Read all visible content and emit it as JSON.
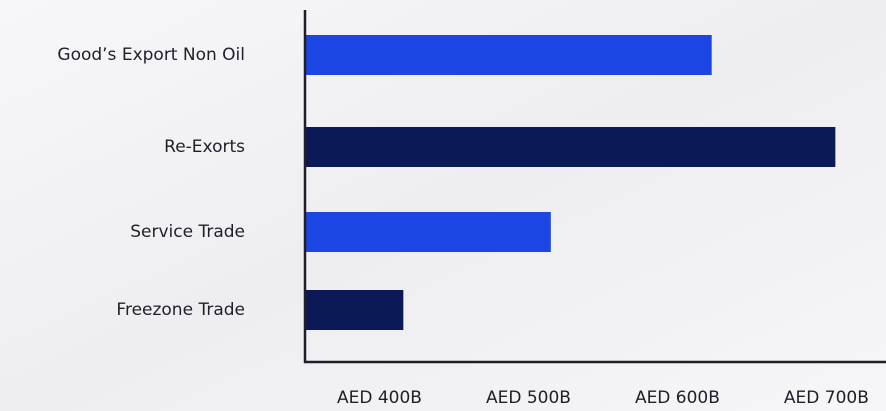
{
  "chart_data": {
    "type": "hbar",
    "categories": [
      "Good’s Export Non Oil",
      "Re-Exorts",
      "Service Trade",
      "Freezone Trade"
    ],
    "values": [
      623,
      706,
      515,
      416
    ],
    "colors": [
      "#1c46e3",
      "#0b1a57",
      "#1c46e3",
      "#0b1a57"
    ],
    "xlim": [
      350,
      740
    ],
    "xticks": [
      {
        "value": 400,
        "label": "AED 400B"
      },
      {
        "value": 500,
        "label": "AED 500B"
      },
      {
        "value": 600,
        "label": "AED 600B"
      },
      {
        "value": 700,
        "label": "AED 700B"
      }
    ],
    "grid": false
  }
}
